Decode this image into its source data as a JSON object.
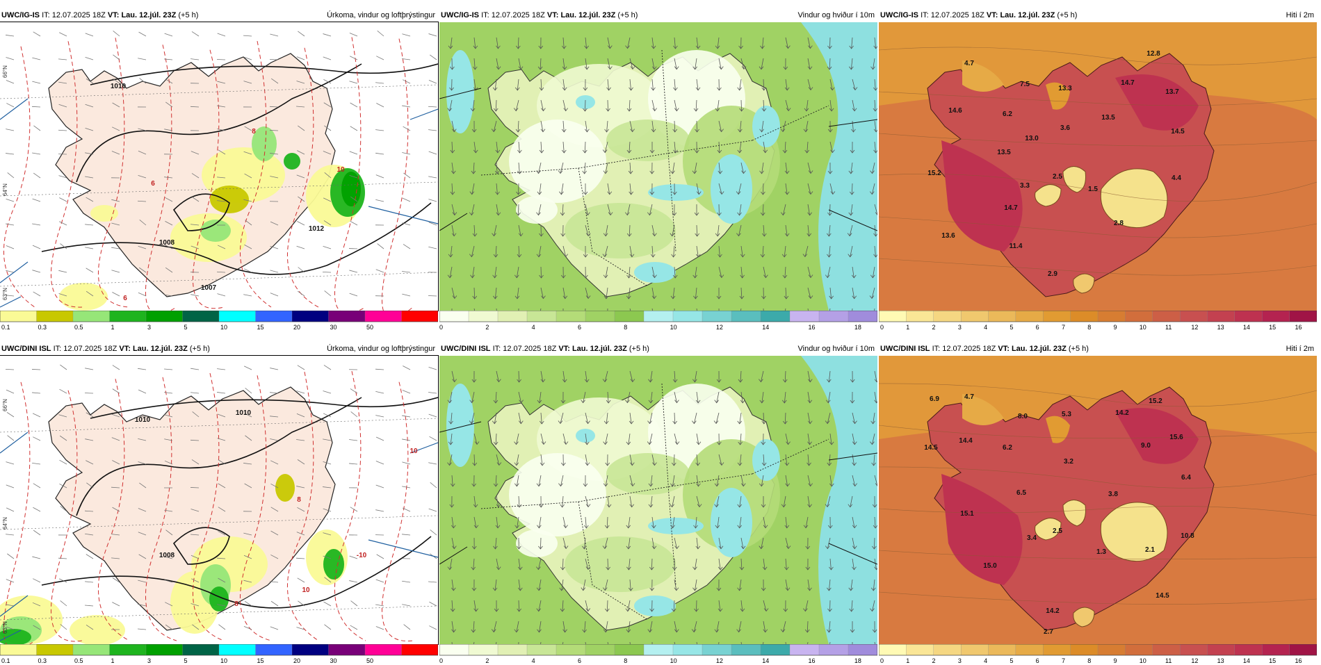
{
  "panels": [
    {
      "model": "UWC/IG-IS",
      "it_label": "IT:",
      "it_value": "12.07.2025 18Z",
      "vt_label": "VT:",
      "vt_value": "Lau. 12.júl. 23Z",
      "lead": "(+5 h)",
      "title": "Úrkoma, vindur og loftþrýstingur",
      "kind": "precip",
      "colorbar": {
        "colors": [
          "#fafa96",
          "#c8c800",
          "#96e678",
          "#1eb41e",
          "#00a000",
          "#006446",
          "#00ffff",
          "#3264ff",
          "#000080",
          "#780078",
          "#ff0096",
          "#ff0000"
        ],
        "labels": [
          "0.1",
          "0.3",
          "0.5",
          "1",
          "3",
          "5",
          "10",
          "15",
          "20",
          "30",
          "50"
        ]
      },
      "labels": [
        {
          "text": "1007"
        },
        {
          "text": "1010"
        },
        {
          "text": "1008"
        },
        {
          "text": "1012"
        },
        {
          "text": "10"
        },
        {
          "text": "8"
        },
        {
          "text": "6"
        },
        {
          "text": "6"
        }
      ]
    },
    {
      "model": "UWC/IG-IS",
      "it_label": "IT:",
      "it_value": "12.07.2025 18Z",
      "vt_label": "VT:",
      "vt_value": "Lau. 12.júl. 23Z",
      "lead": "(+5 h)",
      "title": "Vindur og hviður í 10m",
      "kind": "wind",
      "colorbar": {
        "colors": [
          "#fafff0",
          "#f0fad2",
          "#e1f0b4",
          "#c8e696",
          "#b4dc78",
          "#a0d264",
          "#8cc850",
          "#b4f0f0",
          "#96e6e6",
          "#78d2d2",
          "#5abebe",
          "#3caaaa",
          "#c8b4f0",
          "#b4a0e6",
          "#a08cdc"
        ],
        "labels": [
          "0",
          "2",
          "4",
          "6",
          "8",
          "10",
          "12",
          "14",
          "16",
          "18"
        ]
      },
      "labels": []
    },
    {
      "model": "UWC/IG-IS",
      "it_label": "IT:",
      "it_value": "12.07.2025 18Z",
      "vt_label": "VT:",
      "vt_value": "Lau. 12.júl. 23Z",
      "lead": "(+5 h)",
      "title": "Hiti í 2m",
      "kind": "temp",
      "colorbar": {
        "colors": [
          "#fffab4",
          "#fae696",
          "#f5d782",
          "#f0c86e",
          "#ebb95a",
          "#e6aa46",
          "#e19b32",
          "#dc8c28",
          "#d77d32",
          "#d26e3c",
          "#cd5f46",
          "#c85050",
          "#c34150",
          "#be3250",
          "#b42350",
          "#a01446"
        ],
        "labels": [
          "0",
          "1",
          "2",
          "3",
          "4",
          "5",
          "6",
          "7",
          "8",
          "9",
          "10",
          "11",
          "12",
          "13",
          "14",
          "15",
          "16"
        ]
      },
      "labels": [
        {
          "text": "4.7"
        },
        {
          "text": "7.5"
        },
        {
          "text": "13.3"
        },
        {
          "text": "14.7"
        },
        {
          "text": "12.8"
        },
        {
          "text": "13.7"
        },
        {
          "text": "14.6"
        },
        {
          "text": "6.2"
        },
        {
          "text": "3.6"
        },
        {
          "text": "13.5"
        },
        {
          "text": "14.5"
        },
        {
          "text": "13.0"
        },
        {
          "text": "13.5"
        },
        {
          "text": "15.2"
        },
        {
          "text": "3.3"
        },
        {
          "text": "2.5"
        },
        {
          "text": "1.5"
        },
        {
          "text": "4.4"
        },
        {
          "text": "14.7"
        },
        {
          "text": "2.8"
        },
        {
          "text": "13.6"
        },
        {
          "text": "11.4"
        },
        {
          "text": "2.9"
        }
      ]
    },
    {
      "model": "UWC/DINI ISL",
      "it_label": "IT:",
      "it_value": "12.07.2025 18Z",
      "vt_label": "VT:",
      "vt_value": "Lau. 12.júl. 23Z",
      "lead": "(+5 h)",
      "title": "Úrkoma, vindur og loftþrýstingur",
      "kind": "precip",
      "colorbar": {
        "colors": [
          "#fafa96",
          "#c8c800",
          "#96e678",
          "#1eb41e",
          "#00a000",
          "#006446",
          "#00ffff",
          "#3264ff",
          "#000080",
          "#780078",
          "#ff0096",
          "#ff0000"
        ],
        "labels": [
          "0.1",
          "0.3",
          "0.5",
          "1",
          "3",
          "5",
          "10",
          "15",
          "20",
          "30",
          "50"
        ]
      },
      "labels": [
        {
          "text": "1010"
        },
        {
          "text": "1010"
        },
        {
          "text": "1008"
        },
        {
          "text": "10"
        },
        {
          "text": "10"
        },
        {
          "text": "-10"
        },
        {
          "text": "8"
        },
        {
          "text": "8"
        }
      ]
    },
    {
      "model": "UWC/DINI ISL",
      "it_label": "IT:",
      "it_value": "12.07.2025 18Z",
      "vt_label": "VT:",
      "vt_value": "Lau. 12.júl. 23Z",
      "lead": "(+5 h)",
      "title": "Vindur og hviður í 10m",
      "kind": "wind",
      "colorbar": {
        "colors": [
          "#fafff0",
          "#f0fad2",
          "#e1f0b4",
          "#c8e696",
          "#b4dc78",
          "#a0d264",
          "#8cc850",
          "#b4f0f0",
          "#96e6e6",
          "#78d2d2",
          "#5abebe",
          "#3caaaa",
          "#c8b4f0",
          "#b4a0e6",
          "#a08cdc"
        ],
        "labels": [
          "0",
          "2",
          "4",
          "6",
          "8",
          "10",
          "12",
          "14",
          "16",
          "18"
        ]
      },
      "labels": []
    },
    {
      "model": "UWC/DINI ISL",
      "it_label": "IT:",
      "it_value": "12.07.2025 18Z",
      "vt_label": "VT:",
      "vt_value": "Lau. 12.júl. 23Z",
      "lead": "(+5 h)",
      "title": "Hiti í 2m",
      "kind": "temp",
      "colorbar": {
        "colors": [
          "#fffab4",
          "#fae696",
          "#f5d782",
          "#f0c86e",
          "#ebb95a",
          "#e6aa46",
          "#e19b32",
          "#dc8c28",
          "#d77d32",
          "#d26e3c",
          "#cd5f46",
          "#c85050",
          "#c34150",
          "#be3250",
          "#b42350",
          "#a01446"
        ],
        "labels": [
          "0",
          "1",
          "2",
          "3",
          "4",
          "5",
          "6",
          "7",
          "8",
          "9",
          "10",
          "11",
          "12",
          "13",
          "14",
          "15",
          "16"
        ]
      },
      "labels": [
        {
          "text": "6.9"
        },
        {
          "text": "4.7"
        },
        {
          "text": "8.0"
        },
        {
          "text": "5.3"
        },
        {
          "text": "14.2"
        },
        {
          "text": "15.2"
        },
        {
          "text": "14.5"
        },
        {
          "text": "14.4"
        },
        {
          "text": "6.2"
        },
        {
          "text": "3.2"
        },
        {
          "text": "9.0"
        },
        {
          "text": "15.6"
        },
        {
          "text": "6.5"
        },
        {
          "text": "3.8"
        },
        {
          "text": "6.4"
        },
        {
          "text": "15.1"
        },
        {
          "text": "3.4"
        },
        {
          "text": "2.5"
        },
        {
          "text": "10.8"
        },
        {
          "text": "1.3"
        },
        {
          "text": "2.1"
        },
        {
          "text": "15.0"
        },
        {
          "text": "14.5"
        },
        {
          "text": "14.2"
        },
        {
          "text": "2.7"
        }
      ]
    }
  ],
  "graticule_labels": [
    "66°N",
    "64°N",
    "65°N",
    "63°N"
  ]
}
